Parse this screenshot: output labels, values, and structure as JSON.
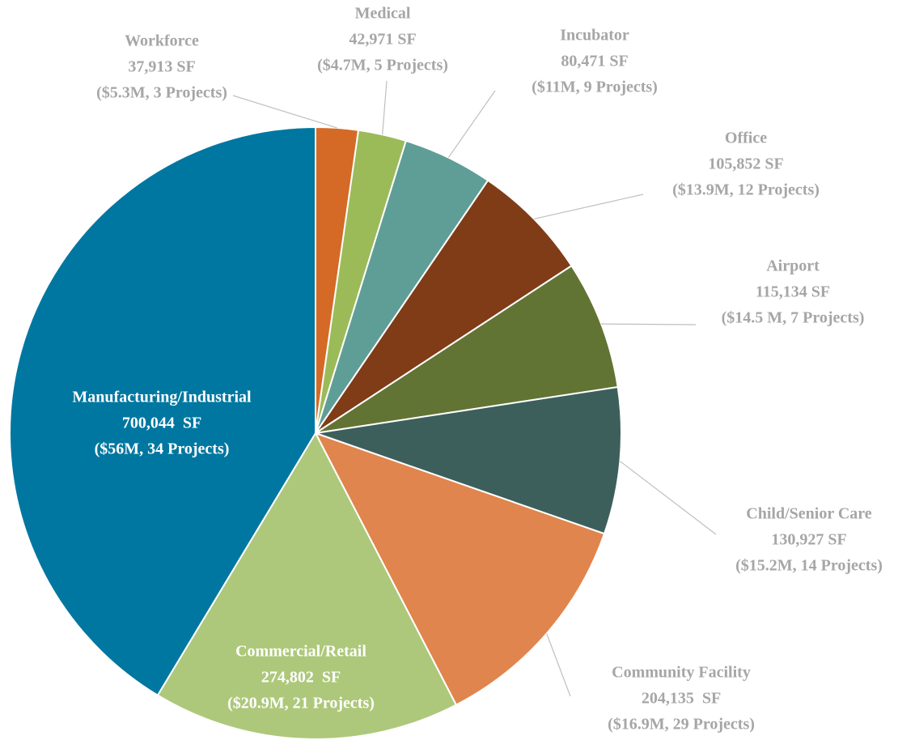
{
  "chart_data": {
    "type": "pie",
    "categories": [
      "Workforce",
      "Medical",
      "Incubator",
      "Office",
      "Airport",
      "Child/Senior Care",
      "Community Facility",
      "Commercial/Retail",
      "Manufacturing/Industrial"
    ],
    "values": [
      37913,
      42971,
      80471,
      105852,
      115134,
      130927,
      204135,
      274802,
      700044
    ],
    "value_labels": [
      "37,913 SF",
      "42,971 SF",
      "80,471 SF",
      "105,852 SF",
      "115,134 SF",
      "130,927 SF",
      "204,135  SF",
      "274,802  SF",
      "700,044  SF"
    ],
    "details": [
      "($5.3M, 3 Projects)",
      "($4.7M, 5 Projects)",
      "($11M, 9 Projects)",
      "($13.9M, 12 Projects)",
      "($14.5 M, 7 Projects)",
      "($15.2M, 14 Projects)",
      "($16.9M, 29 Projects)",
      "($20.9M, 21 Projects)",
      "($56M, 34 Projects)"
    ],
    "colors": [
      "#d46a25",
      "#9bbb59",
      "#5f9e96",
      "#7f3c17",
      "#627433",
      "#3c5f5c",
      "#e0854d",
      "#adc87a",
      "#0077a0"
    ]
  }
}
